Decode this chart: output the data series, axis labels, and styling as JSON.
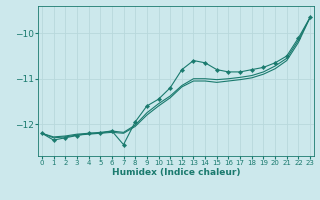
{
  "xlabel": "Humidex (Indice chaleur)",
  "bg_color": "#cce8ec",
  "grid_color": "#b8d8dc",
  "line_color": "#1a7a6e",
  "x_ticks": [
    0,
    1,
    2,
    3,
    4,
    5,
    6,
    7,
    8,
    9,
    10,
    11,
    12,
    13,
    14,
    15,
    16,
    17,
    18,
    19,
    20,
    21,
    22,
    23
  ],
  "y_ticks": [
    -10,
    -11,
    -12
  ],
  "ylim": [
    -12.7,
    -9.4
  ],
  "xlim": [
    -0.3,
    23.3
  ],
  "series_jagged_y": [
    -12.2,
    -12.35,
    -12.3,
    -12.25,
    -12.2,
    -12.2,
    -12.15,
    -12.45,
    -11.95,
    -11.6,
    -11.45,
    -11.2,
    -10.8,
    -10.6,
    -10.65,
    -10.8,
    -10.85,
    -10.85,
    -10.8,
    -10.75,
    -10.65,
    -10.5,
    -10.1,
    -9.65
  ],
  "series_smooth1_y": [
    -12.2,
    -12.3,
    -12.28,
    -12.24,
    -12.22,
    -12.2,
    -12.18,
    -12.2,
    -12.05,
    -11.8,
    -11.6,
    -11.42,
    -11.18,
    -11.05,
    -11.05,
    -11.08,
    -11.05,
    -11.02,
    -10.98,
    -10.9,
    -10.78,
    -10.6,
    -10.2,
    -9.65
  ],
  "series_smooth2_y": [
    -12.2,
    -12.28,
    -12.26,
    -12.22,
    -12.2,
    -12.18,
    -12.15,
    -12.18,
    -12.02,
    -11.75,
    -11.55,
    -11.38,
    -11.15,
    -11.0,
    -11.0,
    -11.02,
    -11.0,
    -10.97,
    -10.93,
    -10.85,
    -10.72,
    -10.55,
    -10.15,
    -9.65
  ]
}
